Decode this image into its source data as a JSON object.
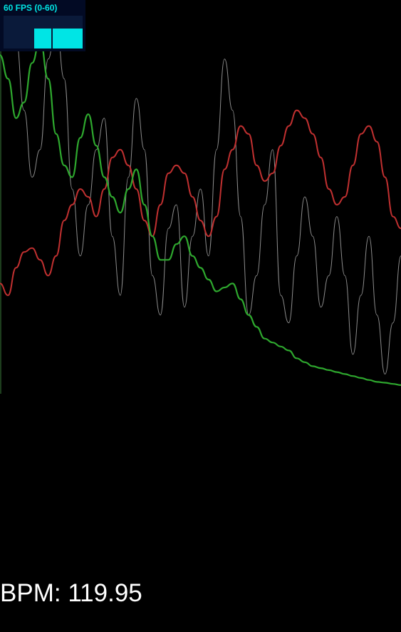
{
  "fps_meter": {
    "label": "60 FPS (0-60)",
    "current_fps": 60,
    "range": [
      0,
      60
    ],
    "text_color": "#00e5e5",
    "background_color": "#020a24"
  },
  "bpm": {
    "label": "BPM:",
    "value": "119.95"
  },
  "visualizer": {
    "background_color": "#000000",
    "series": [
      {
        "color": "#8c8c8c",
        "values": [
          0.96,
          0.93,
          0.9,
          0.72,
          0.55,
          0.62,
          0.85,
          0.95,
          0.8,
          0.52,
          0.35,
          0.48,
          0.62,
          0.7,
          0.4,
          0.25,
          0.55,
          0.75,
          0.62,
          0.3,
          0.2,
          0.42,
          0.48,
          0.22,
          0.4,
          0.52,
          0.35,
          0.62,
          0.85,
          0.72,
          0.45,
          0.2,
          0.3,
          0.48,
          0.62,
          0.25,
          0.18,
          0.35,
          0.5,
          0.4,
          0.22,
          0.3,
          0.45,
          0.3,
          0.1,
          0.25,
          0.4,
          0.2,
          0.05,
          0.18,
          0.35
        ]
      },
      {
        "color": "#c03030",
        "values": [
          0.28,
          0.25,
          0.32,
          0.36,
          0.37,
          0.34,
          0.3,
          0.35,
          0.44,
          0.48,
          0.52,
          0.5,
          0.45,
          0.52,
          0.6,
          0.62,
          0.58,
          0.52,
          0.44,
          0.4,
          0.48,
          0.56,
          0.58,
          0.56,
          0.5,
          0.44,
          0.4,
          0.45,
          0.57,
          0.62,
          0.68,
          0.66,
          0.58,
          0.54,
          0.56,
          0.63,
          0.68,
          0.72,
          0.7,
          0.66,
          0.6,
          0.52,
          0.48,
          0.5,
          0.58,
          0.66,
          0.68,
          0.64,
          0.55,
          0.45,
          0.42
        ]
      },
      {
        "color": "#2ea82e",
        "values": [
          0.86,
          0.8,
          0.7,
          0.74,
          0.84,
          0.9,
          0.8,
          0.66,
          0.58,
          0.55,
          0.65,
          0.71,
          0.63,
          0.55,
          0.5,
          0.46,
          0.52,
          0.57,
          0.48,
          0.4,
          0.34,
          0.34,
          0.38,
          0.4,
          0.35,
          0.32,
          0.29,
          0.26,
          0.27,
          0.28,
          0.24,
          0.2,
          0.17,
          0.14,
          0.13,
          0.12,
          0.11,
          0.09,
          0.08,
          0.07,
          0.065,
          0.06,
          0.055,
          0.05,
          0.045,
          0.04,
          0.035,
          0.03,
          0.028,
          0.025,
          0.022
        ]
      }
    ]
  }
}
